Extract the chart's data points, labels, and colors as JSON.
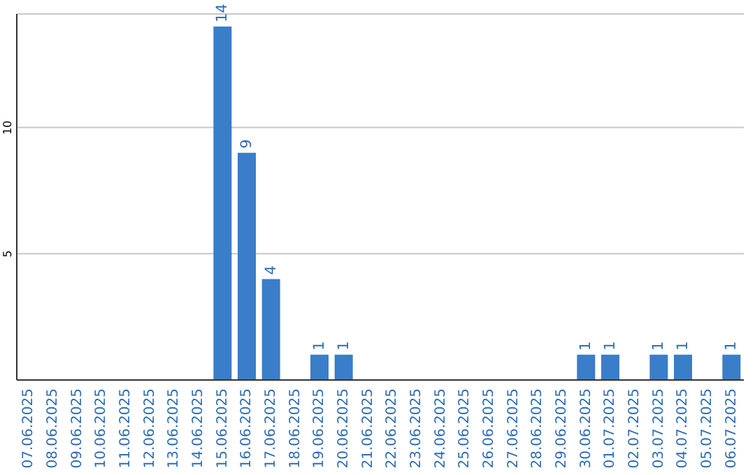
{
  "chart_data": {
    "type": "bar",
    "categories": [
      "07.06.2025",
      "08.06.2025",
      "09.06.2025",
      "10.06.2025",
      "11.06.2025",
      "12.06.2025",
      "13.06.2025",
      "14.06.2025",
      "15.06.2025",
      "16.06.2025",
      "17.06.2025",
      "18.06.2025",
      "19.06.2025",
      "20.06.2025",
      "21.06.2025",
      "22.06.2025",
      "23.06.2025",
      "24.06.2025",
      "25.06.2025",
      "26.06.2025",
      "27.06.2025",
      "28.06.2025",
      "29.06.2025",
      "30.06.2025",
      "01.07.2025",
      "02.07.2025",
      "03.07.2025",
      "04.07.2025",
      "05.07.2025",
      "06.07.2025"
    ],
    "values": [
      0,
      0,
      0,
      0,
      0,
      0,
      0,
      0,
      14,
      9,
      4,
      0,
      1,
      1,
      0,
      0,
      0,
      0,
      0,
      0,
      0,
      0,
      0,
      1,
      1,
      0,
      1,
      1,
      0,
      1
    ],
    "value_labels": [
      null,
      null,
      null,
      null,
      null,
      null,
      null,
      null,
      "14",
      "9",
      "4",
      null,
      "1",
      "1",
      null,
      null,
      null,
      null,
      null,
      null,
      null,
      null,
      null,
      "1",
      "1",
      null,
      "1",
      "1",
      null,
      "1"
    ],
    "color": "#3a7dc9",
    "ylim": [
      0,
      14.5
    ],
    "yticks": [
      5,
      10
    ],
    "grid": "y",
    "legend": false
  }
}
